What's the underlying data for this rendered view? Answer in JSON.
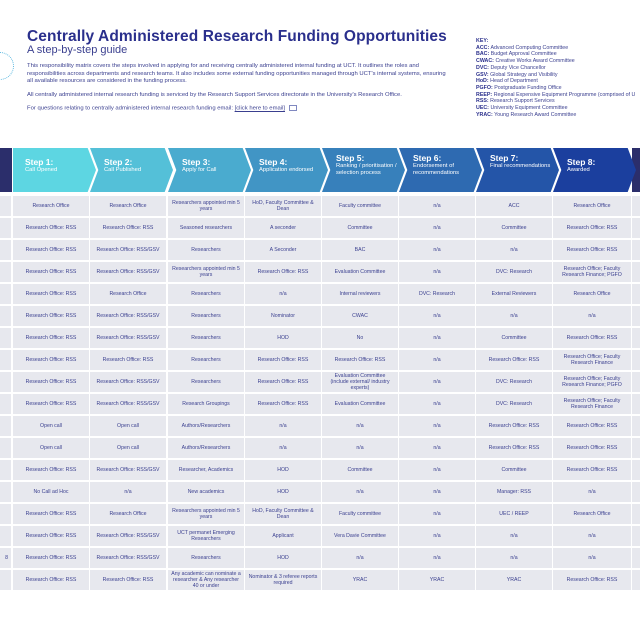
{
  "header": {
    "title": "Centrally Administered Research Funding Opportunities",
    "subtitle": "A step-by-step guide",
    "paragraph1": "This responsibility matrix covers the steps involved in applying for and receiving centrally administered internal funding at UCT. It outlines the roles and responsibilities across departments and research teams. It also includes some external funding opportunities managed through UCT's internal systems, ensuring all available resources are considered in the funding process.",
    "paragraph2": "All centrally administered internal research funding is serviced by the Research Support Services directorate in the University's Research Office.",
    "paragraph3": "For questions relating to centrally administered internal research funding email:",
    "email_link": "[click here to email]",
    "email_icon": "mail-icon"
  },
  "key": {
    "heading": "KEY:",
    "items": [
      {
        "abbr": "ACC:",
        "text": "Advanced Computing Committee"
      },
      {
        "abbr": "BAC:",
        "text": "Budget Approval Committee"
      },
      {
        "abbr": "CWAC:",
        "text": "Creative Works Award Committee"
      },
      {
        "abbr": "DVC:",
        "text": "Deputy Vice Chancellor"
      },
      {
        "abbr": "GSV:",
        "text": "Global Strategy and Visibility"
      },
      {
        "abbr": "HoD:",
        "text": "Head of Department"
      },
      {
        "abbr": "PGFO:",
        "text": "Postgraduate Funding Office"
      },
      {
        "abbr": "REEP:",
        "text": "Regional Expensive Equipment Programme (comprised of U"
      },
      {
        "abbr": "RSS:",
        "text": "Research Support Services"
      },
      {
        "abbr": "UEC:",
        "text": "University Equipment Committee"
      },
      {
        "abbr": "YRAC:",
        "text": "Young Research Award Committee"
      }
    ]
  },
  "colors": {
    "navy": "#2b2e6b",
    "cell": "#e7e8ee",
    "text": "#3a3f8f",
    "step_start": "#5dd6e2",
    "step_end": "#1b3f9e"
  },
  "steps": [
    {
      "title": "Step 1:",
      "desc": "Call Opened"
    },
    {
      "title": "Step 2:",
      "desc": "Call Published"
    },
    {
      "title": "Step 3:",
      "desc": "Apply for Call"
    },
    {
      "title": "Step 4:",
      "desc": "Application endorsed"
    },
    {
      "title": "Step 5:",
      "desc": "Ranking / prioritisation / selection process"
    },
    {
      "title": "Step 6:",
      "desc": "Endorsement of recommendations"
    },
    {
      "title": "Step 7:",
      "desc": "Final recommendations"
    },
    {
      "title": "Step 8:",
      "desc": "Awarded"
    }
  ],
  "rows": [
    {
      "label": "",
      "cells": [
        "Research Office",
        "Research Office",
        "Researchers appointed min 5 years",
        "HoD, Faculty Committee & Dean",
        "Faculty committee",
        "n/a",
        "ACC",
        "Research Office"
      ]
    },
    {
      "label": "",
      "cells": [
        "Research Office: RSS",
        "Research Office: RSS",
        "Seasoned researchers",
        "A seconder",
        "Committee",
        "n/a",
        "Committee",
        "Research Office: RSS"
      ]
    },
    {
      "label": "",
      "cells": [
        "Research Office: RSS",
        "Research Office: RSS/GSV",
        "Researchers",
        "A Seconder",
        "BAC",
        "n/a",
        "n/a",
        "Research Office: RSS"
      ]
    },
    {
      "label": "",
      "cells": [
        "Research Office: RSS",
        "Research Office: RSS/GSV",
        "Researchers appointed min 5 years",
        "Research Office: RSS",
        "Evaluation Committee",
        "n/a",
        "DVC: Research",
        "Research Office; Faculty Research Finance; PGFO"
      ]
    },
    {
      "label": "",
      "cells": [
        "Research Office: RSS",
        "Research Office",
        "Researchers",
        "n/a",
        "Internal reviewers",
        "DVC: Research",
        "External Reviewers",
        "Research Office"
      ]
    },
    {
      "label": "",
      "cells": [
        "Research Office: RSS",
        "Research Office: RSS/GSV",
        "Researchers",
        "Nominator",
        "CWAC",
        "n/a",
        "n/a",
        "n/a"
      ]
    },
    {
      "label": "",
      "cells": [
        "Research Office: RSS",
        "Research Office: RSS/GSV",
        "Researchers",
        "HOD",
        "No",
        "n/a",
        "Committee",
        "Research Office: RSS"
      ]
    },
    {
      "label": "",
      "cells": [
        "Research Office: RSS",
        "Research Office: RSS",
        "Researchers",
        "Research Office: RSS",
        "Research Office: RSS",
        "n/a",
        "Research Office: RSS",
        "Research Office; Faculty Research Finance"
      ]
    },
    {
      "label": "",
      "cells": [
        "Research Office: RSS",
        "Research Office: RSS/GSV",
        "Researchers",
        "Research Office: RSS",
        "Evaluation Committee (include external/ industry experts)",
        "n/a",
        "DVC: Research",
        "Research Office; Faculty Research Finance; PGFO"
      ]
    },
    {
      "label": "",
      "cells": [
        "Research Office: RSS",
        "Research Office: RSS/GSV",
        "Research Groupings",
        "Research Office: RSS",
        "Evaluation Committee",
        "n/a",
        "DVC: Research",
        "Research Office; Faculty Research Finance"
      ]
    },
    {
      "label": "",
      "cells": [
        "Open call",
        "Open call",
        "Authors/Researchers",
        "n/a",
        "n/a",
        "n/a",
        "Research Office: RSS",
        "Research Office: RSS"
      ]
    },
    {
      "label": "",
      "cells": [
        "Open call",
        "Open call",
        "Authors/Researchers",
        "n/a",
        "n/a",
        "n/a",
        "Research Office: RSS",
        "Research Office: RSS"
      ]
    },
    {
      "label": "",
      "cells": [
        "Research Office: RSS",
        "Research Office: RSS/GSV",
        "Researcher, Academics",
        "HOD",
        "Committee",
        "n/a",
        "Committee",
        "Research Office: RSS"
      ]
    },
    {
      "label": "",
      "cells": [
        "No Call ad Hoc",
        "n/a",
        "New academics",
        "HOD",
        "n/a",
        "n/a",
        "Manager: RSS",
        "n/a"
      ]
    },
    {
      "label": "",
      "cells": [
        "Research Office: RSS",
        "Research Office",
        "Researchers appointed min 5 years",
        "HoD, Faculty Committee & Dean",
        "Faculty committee",
        "n/a",
        "UEC / REEP",
        "Research Office"
      ]
    },
    {
      "label": "",
      "cells": [
        "Research Office: RSS",
        "Research Office: RSS/GSV",
        "UCT permanet Emerging Researchers",
        "Applicant",
        "Vera Davie Committee",
        "n/a",
        "n/a",
        "n/a"
      ]
    },
    {
      "label": "8",
      "cells": [
        "Research Office: RSS",
        "Research Office: RSS/GSV",
        "Researchers",
        "HOD",
        "n/a",
        "n/a",
        "n/a",
        "n/a"
      ]
    },
    {
      "label": "",
      "cells": [
        "Research Office: RSS",
        "Research Office: RSS",
        "Any academic can nominate a researcher & Any researcher 40 or under",
        "Nominator & 3 referee reports required",
        "YRAC",
        "YRAC",
        "YRAC",
        "Research Office: RSS"
      ]
    }
  ]
}
